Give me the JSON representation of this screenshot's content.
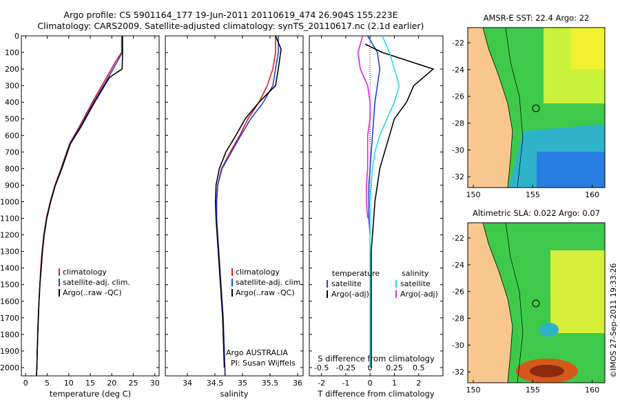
{
  "header": {
    "line1": "Argo profile: CS 5901164_177 19-Jun-2011 20110619_474 26.904S 155.223E",
    "line2": "Climatology: CARS2009. Satellite-adjusted climatology: synTS_20110617.nc (2.1d earlier)"
  },
  "colors": {
    "climatology": "#e8131a",
    "satellite": "#1f3fd6",
    "argo": "#000000",
    "cyan": "#20e0e0",
    "magenta": "#e020e0",
    "land": "#f7c78f"
  },
  "depth_ticks": [
    0,
    100,
    200,
    300,
    400,
    500,
    600,
    700,
    800,
    900,
    1000,
    1100,
    1200,
    1300,
    1400,
    1500,
    1600,
    1700,
    1800,
    1900,
    2000
  ],
  "chart_data": [
    {
      "type": "line",
      "xlabel": "temperature (deg C)",
      "xlim": [
        -1,
        31
      ],
      "ylim": [
        2050,
        0
      ],
      "xticks": [
        "0",
        "5",
        "10",
        "15",
        "20",
        "25",
        "30"
      ],
      "xtick_values": [
        0,
        5,
        10,
        15,
        20,
        25,
        30
      ],
      "legend": [
        "climatology",
        "satellite-adj. clim.",
        "Argo(..raw -QC)"
      ],
      "series": [
        {
          "name": "climatology",
          "color": "#e8131a",
          "x": [
            22.3,
            22.3,
            21.0,
            18.8,
            15.5,
            12.4,
            10.2,
            8.2,
            6.8,
            5.7,
            4.8,
            4.2,
            3.8,
            3.5,
            3.3,
            3.1,
            2.9,
            2.8,
            2.7,
            2.6,
            2.5,
            2.45
          ],
          "y": [
            0,
            100,
            150,
            250,
            400,
            550,
            650,
            800,
            900,
            1000,
            1100,
            1200,
            1300,
            1400,
            1500,
            1600,
            1700,
            1800,
            1900,
            2000,
            2050,
            2050
          ]
        },
        {
          "name": "satellite-adj. clim.",
          "color": "#1f3fd6",
          "x": [
            22.4,
            22.4,
            21.4,
            19.2,
            15.8,
            12.6,
            10.3,
            8.3,
            6.9,
            5.8,
            4.9,
            4.3,
            3.9,
            3.6,
            3.3,
            3.1,
            2.95,
            2.8,
            2.7,
            2.6,
            2.5
          ],
          "y": [
            0,
            100,
            150,
            250,
            400,
            550,
            650,
            800,
            900,
            1000,
            1100,
            1200,
            1300,
            1400,
            1500,
            1600,
            1700,
            1800,
            1900,
            2000,
            2050
          ]
        },
        {
          "name": "Argo(..raw -QC)",
          "color": "#000000",
          "x": [
            22.5,
            22.5,
            22.4,
            19.5,
            16.0,
            12.8,
            10.4,
            8.4,
            6.9,
            5.8,
            4.9,
            4.3,
            3.9,
            3.6,
            3.3,
            3.1,
            2.95,
            2.8,
            2.7,
            2.6,
            2.5
          ],
          "y": [
            0,
            100,
            200,
            250,
            400,
            550,
            650,
            800,
            900,
            1000,
            1100,
            1200,
            1300,
            1400,
            1500,
            1600,
            1700,
            1800,
            1900,
            2000,
            2050
          ]
        }
      ]
    },
    {
      "type": "line",
      "xlabel": "salinity",
      "xlim": [
        33.6,
        36.1
      ],
      "ylim": [
        2050,
        0
      ],
      "xticks": [
        "34",
        "34.5",
        "35",
        "35.5",
        "36"
      ],
      "xtick_values": [
        34,
        34.5,
        35,
        35.5,
        36
      ],
      "legend": [
        "climatology",
        "satellite-adj. clim.",
        "Argo(..raw -QC)"
      ],
      "annotation": [
        "Argo AUSTRALIA",
        "PI: Susan Wijffels"
      ],
      "series": [
        {
          "name": "climatology",
          "color": "#e8131a",
          "x": [
            35.6,
            35.6,
            35.55,
            35.45,
            35.3,
            35.1,
            34.95,
            34.78,
            34.62,
            34.55,
            34.53,
            34.53,
            34.55,
            34.57,
            34.59,
            34.61,
            34.63,
            34.65,
            34.66,
            34.67,
            34.68,
            34.68
          ],
          "y": [
            0,
            100,
            200,
            300,
            400,
            500,
            600,
            700,
            800,
            900,
            1000,
            1100,
            1200,
            1300,
            1400,
            1500,
            1600,
            1700,
            1800,
            1900,
            2000,
            2050
          ]
        },
        {
          "name": "satellite-adj. clim.",
          "color": "#1f3fd6",
          "x": [
            35.65,
            35.65,
            35.6,
            35.55,
            35.38,
            35.15,
            34.97,
            34.8,
            34.63,
            34.55,
            34.53,
            34.53,
            34.55,
            34.57,
            34.59,
            34.61,
            34.63,
            34.65,
            34.66,
            34.67,
            34.68,
            34.69
          ],
          "y": [
            0,
            100,
            200,
            300,
            400,
            500,
            600,
            700,
            800,
            900,
            1000,
            1100,
            1200,
            1300,
            1400,
            1500,
            1600,
            1700,
            1800,
            1900,
            2000,
            2050
          ]
        },
        {
          "name": "Argo(..raw -QC)",
          "color": "#000000",
          "x": [
            35.6,
            35.7,
            35.65,
            35.6,
            35.3,
            35.05,
            34.88,
            34.7,
            34.58,
            34.52,
            34.51,
            34.52,
            34.54,
            34.56,
            34.58,
            34.6,
            34.62,
            34.64,
            34.65,
            34.66,
            34.67
          ],
          "y": [
            0,
            80,
            200,
            300,
            400,
            500,
            600,
            700,
            800,
            900,
            1000,
            1100,
            1200,
            1300,
            1400,
            1500,
            1600,
            1700,
            1800,
            1900,
            2000
          ]
        }
      ]
    },
    {
      "type": "line",
      "xlabel": "T difference from climatology",
      "xlabel_top": "S difference from climatology",
      "xlim": [
        -2.5,
        3.0
      ],
      "ylim": [
        2050,
        0
      ],
      "xticks": [
        "-2",
        "-1",
        "0",
        "1",
        "2"
      ],
      "xtick_values": [
        -2,
        -1,
        0,
        1,
        2
      ],
      "sticks": [
        "-0.5",
        "-0.25",
        "0",
        "0.25",
        "0.5"
      ],
      "stick_values": [
        -2,
        -1,
        0,
        1,
        2
      ],
      "legend_left_title": "temperature",
      "legend_right_title": "salinity",
      "legend_left": [
        "satellite",
        "Argo(-adj)"
      ],
      "legend_right": [
        "satellite",
        "Argo(-adj)"
      ],
      "series": [
        {
          "name": "temperature satellite",
          "color": "#1f3fd6",
          "x": [
            -0.1,
            0.3,
            0.4,
            0.3,
            0.2,
            0.15,
            0.1,
            0.05,
            0.0,
            -0.05,
            -0.05,
            -0.05,
            0.0,
            0.0,
            0.0,
            0.0,
            0.0,
            0.0,
            0.0,
            0.0
          ],
          "y": [
            0,
            100,
            200,
            300,
            400,
            500,
            600,
            700,
            800,
            900,
            1000,
            1100,
            1200,
            1300,
            1400,
            1500,
            1600,
            1700,
            1800,
            2000
          ]
        },
        {
          "name": "temperature Argo(-adj)",
          "color": "#000000",
          "x": [
            -0.2,
            0.5,
            2.6,
            1.8,
            1.5,
            1.0,
            0.8,
            0.6,
            0.4,
            0.3,
            0.2,
            0.15,
            0.1,
            0.05,
            0.05,
            0.05,
            0.05,
            0.05,
            0.05,
            0.05
          ],
          "y": [
            50,
            100,
            200,
            300,
            400,
            500,
            600,
            700,
            800,
            900,
            1000,
            1100,
            1200,
            1300,
            1400,
            1500,
            1600,
            1700,
            1800,
            2000
          ]
        },
        {
          "name": "salinity satellite",
          "color": "#20e0e0",
          "x": [
            0.5,
            0.8,
            1.0,
            1.2,
            1.0,
            0.7,
            0.4,
            0.2,
            0.1,
            0.05,
            0.0,
            0.0,
            0.0,
            0.0,
            0.0,
            0.0,
            0.0,
            0.0,
            0.0,
            0.0
          ],
          "y": [
            0,
            100,
            200,
            300,
            400,
            500,
            600,
            700,
            800,
            900,
            1000,
            1100,
            1200,
            1300,
            1400,
            1500,
            1600,
            1700,
            1800,
            2000
          ]
        },
        {
          "name": "salinity Argo(-adj)",
          "color": "#e020e0",
          "x": [
            -0.3,
            -0.5,
            -0.4,
            -0.1,
            0.0,
            0.0,
            -0.1,
            -0.1,
            -0.1,
            -0.15,
            -0.15,
            -0.1
          ],
          "y": [
            0,
            100,
            200,
            300,
            400,
            500,
            600,
            700,
            800,
            900,
            1000,
            1100
          ]
        }
      ]
    }
  ],
  "maps": [
    {
      "title": "AMSR-E SST: 22.4 Argo: 22",
      "yticks": [
        "-22",
        "-24",
        "-26",
        "-28",
        "-30",
        "-32"
      ],
      "xticks": [
        "150",
        "155",
        "160"
      ]
    },
    {
      "title": "Altimetric SLA: 0.022 Argo: 0.07",
      "yticks": [
        "-22",
        "-24",
        "-26",
        "-28",
        "-30",
        "-32"
      ],
      "xticks": [
        "150",
        "155",
        "160"
      ]
    }
  ],
  "footer": "©IMOS 27-Sep-2011 19:33:26"
}
